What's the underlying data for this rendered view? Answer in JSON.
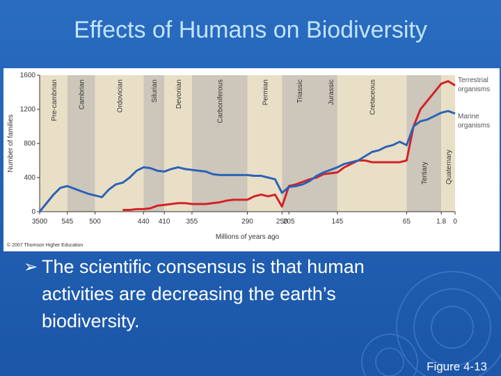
{
  "slide": {
    "title": "Effects of Humans on Biodiversity",
    "bullet": "The scientific consensus is that human activities are decreasing the earth’s biodiversity.",
    "figure_label": "Figure 4-13",
    "credit": "© 2007 Thomson Higher Education"
  },
  "chart_data": {
    "type": "line",
    "x_label": "Millions of years ago",
    "y_label": "Number of families",
    "periods": [
      "Pre-cambrian",
      "Cambrian",
      "Ordovician",
      "Silurian",
      "Devonian",
      "Carboniferous",
      "Permian",
      "Triassic",
      "Jurassic",
      "Cretaceous",
      "Tertiary",
      "Quaternary"
    ],
    "categories": [
      "3500",
      null,
      null,
      null,
      "545",
      null,
      null,
      null,
      "500",
      null,
      null,
      null,
      null,
      null,
      null,
      "440",
      null,
      null,
      "410",
      null,
      null,
      null,
      "355",
      null,
      null,
      null,
      null,
      null,
      null,
      null,
      "290",
      null,
      null,
      null,
      null,
      "250",
      "205",
      null,
      null,
      null,
      null,
      null,
      null,
      "145",
      null,
      null,
      null,
      null,
      null,
      null,
      null,
      null,
      null,
      "65",
      null,
      null,
      null,
      null,
      "1.8",
      null,
      "0"
    ],
    "series": [
      {
        "name": "Terrestrial organisms",
        "color": "#d42127",
        "values": [
          null,
          null,
          null,
          null,
          null,
          null,
          null,
          null,
          null,
          null,
          null,
          null,
          20,
          20,
          30,
          30,
          40,
          70,
          80,
          90,
          100,
          100,
          90,
          90,
          90,
          100,
          110,
          130,
          140,
          140,
          140,
          180,
          200,
          180,
          200,
          60,
          300,
          320,
          350,
          380,
          400,
          440,
          450,
          460,
          520,
          560,
          600,
          600,
          580,
          580,
          580,
          580,
          580,
          600,
          1000,
          1200,
          1300,
          1400,
          1500,
          1530,
          1480
        ]
      },
      {
        "name": "Marine organisms",
        "color": "#2a62b8",
        "values": [
          0,
          100,
          200,
          280,
          300,
          270,
          240,
          210,
          190,
          170,
          260,
          320,
          340,
          400,
          480,
          520,
          510,
          480,
          470,
          500,
          520,
          500,
          490,
          480,
          470,
          440,
          430,
          430,
          430,
          430,
          430,
          420,
          420,
          400,
          380,
          220,
          290,
          300,
          320,
          360,
          420,
          460,
          490,
          520,
          560,
          580,
          600,
          650,
          700,
          720,
          760,
          780,
          820,
          780,
          1000,
          1060,
          1080,
          1120,
          1160,
          1180,
          1150
        ]
      }
    ],
    "ylim": [
      0,
      1600
    ],
    "yticks": [
      0,
      400,
      800,
      1200,
      1600
    ]
  }
}
